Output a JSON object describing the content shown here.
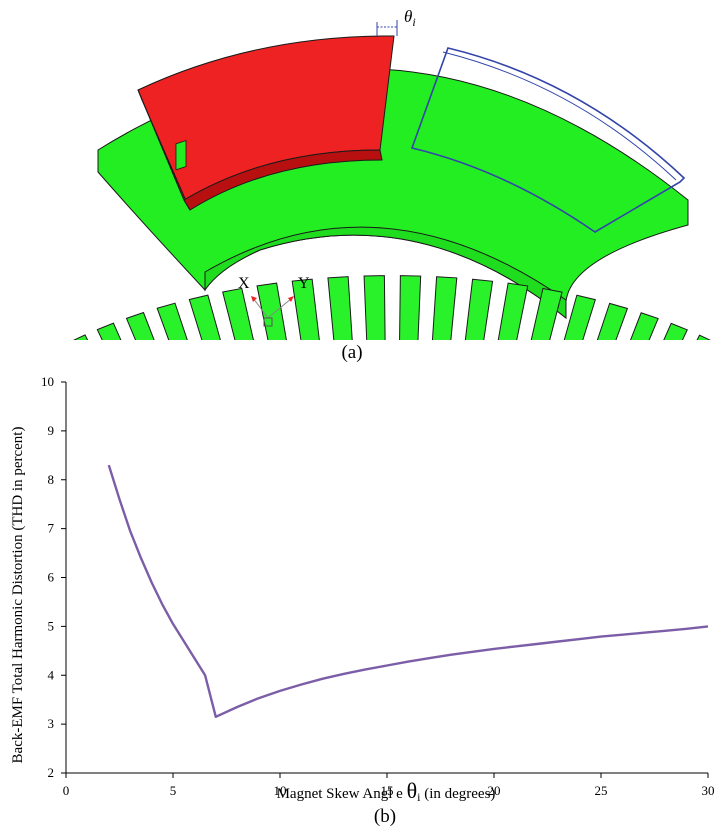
{
  "figure_a": {
    "theta_label": "θ",
    "theta_sub": "i",
    "axis_x_label": "X",
    "axis_y_label": "Y",
    "caption": "(a)",
    "colors": {
      "core": "#22ee22",
      "magnet": "#ee2222",
      "outline": "#1a1a1a",
      "skew_outline": "#3344aa"
    }
  },
  "figure_b": {
    "caption": "(b)"
  },
  "chart_data": {
    "type": "line",
    "xlabel_main": "Magnet  Skew Angl e ",
    "xlabel_symbol": "θ",
    "xlabel_sub": "i",
    "xlabel_units": "  (in degrees)",
    "ylabel": "Back-EMF Total Harmonic Distortion (THD in percent)",
    "xlim": [
      0,
      30
    ],
    "ylim": [
      2,
      10
    ],
    "xticks": [
      0,
      5,
      10,
      15,
      20,
      25,
      30
    ],
    "yticks": [
      2,
      3,
      4,
      5,
      6,
      7,
      8,
      9,
      10
    ],
    "grid": false,
    "series": [
      {
        "color": "#7b5ea7",
        "x": [
          2,
          2.5,
          3,
          3.5,
          4,
          4.5,
          5,
          5.5,
          6,
          6.5,
          7,
          8,
          9,
          10,
          11,
          12,
          13,
          14,
          15,
          16,
          17,
          18,
          19,
          20,
          21,
          22,
          23,
          24,
          25,
          26,
          27,
          28,
          29,
          30
        ],
        "y": [
          8.3,
          7.6,
          6.95,
          6.4,
          5.9,
          5.45,
          5.05,
          4.7,
          4.35,
          4.0,
          3.15,
          3.35,
          3.53,
          3.68,
          3.81,
          3.93,
          4.03,
          4.12,
          4.2,
          4.28,
          4.35,
          4.42,
          4.48,
          4.54,
          4.59,
          4.64,
          4.69,
          4.74,
          4.79,
          4.83,
          4.87,
          4.91,
          4.95,
          5.0
        ]
      }
    ]
  }
}
